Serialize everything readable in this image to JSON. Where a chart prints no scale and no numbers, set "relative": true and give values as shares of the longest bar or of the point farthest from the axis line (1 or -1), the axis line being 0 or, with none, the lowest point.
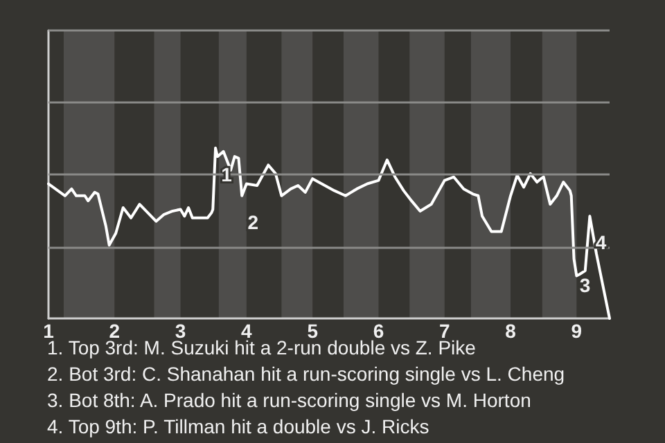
{
  "chart_data": {
    "type": "line",
    "relative": true,
    "x": [
      1,
      1.25,
      1.35,
      1.42,
      1.55,
      1.6,
      1.7,
      1.75,
      1.87,
      1.92,
      2.02,
      2.13,
      2.25,
      2.38,
      2.63,
      2.75,
      2.88,
      3,
      3.06,
      3.12,
      3.18,
      3.41,
      3.47,
      3.49,
      3.53,
      3.56,
      3.65,
      3.76,
      3.82,
      3.88,
      3.93,
      4,
      4.16,
      4.33,
      4.44,
      4.53,
      4.67,
      4.78,
      4.89,
      5,
      5.33,
      5.5,
      5.67,
      5.83,
      6,
      6.13,
      6.25,
      6.38,
      6.5,
      6.63,
      6.8,
      7,
      7.14,
      7.29,
      7.43,
      7.51,
      7.57,
      7.71,
      7.86,
      8,
      8.1,
      8.2,
      8.3,
      8.4,
      8.46,
      8.5,
      8.6,
      8.7,
      8.8,
      8.9,
      8.92,
      8.96,
      9,
      9.05,
      9.13,
      9.2,
      9.3,
      9.5
    ],
    "series": [
      {
        "color": "#ffffff",
        "values": [
          0.79,
          0.72,
          0.76,
          0.72,
          0.72,
          0.69,
          0.74,
          0.73,
          0.54,
          0.43,
          0.5,
          0.65,
          0.59,
          0.67,
          0.57,
          0.61,
          0.63,
          0.64,
          0.6,
          0.65,
          0.59,
          0.59,
          0.62,
          0.64,
          1,
          0.95,
          0.98,
          0.87,
          0.95,
          0.94,
          0.72,
          0.79,
          0.78,
          0.9,
          0.85,
          0.72,
          0.76,
          0.78,
          0.74,
          0.82,
          0.75,
          0.72,
          0.76,
          0.79,
          0.81,
          0.93,
          0.83,
          0.75,
          0.69,
          0.63,
          0.67,
          0.81,
          0.83,
          0.76,
          0.73,
          0.72,
          0.6,
          0.51,
          0.51,
          0.72,
          0.84,
          0.77,
          0.85,
          0.8,
          0.82,
          0.83,
          0.67,
          0.72,
          0.8,
          0.75,
          0.72,
          0.35,
          0.25,
          0.26,
          0.28,
          0.6,
          0.38,
          0
        ]
      }
    ],
    "xlim": [
      1,
      9.5
    ],
    "xticks": [
      1,
      2,
      3,
      4,
      5,
      6,
      7,
      8,
      9
    ],
    "tick_labels": "x",
    "marker": "none",
    "bands": [
      {
        "axis": "x",
        "from": 1.23,
        "to": 2,
        "color": "#4e4d4b"
      },
      {
        "axis": "x",
        "from": 2.6,
        "to": 3,
        "color": "#4e4d4b"
      },
      {
        "axis": "x",
        "from": 3.58,
        "to": 4,
        "color": "#4e4d4b"
      },
      {
        "axis": "x",
        "from": 4.53,
        "to": 5,
        "color": "#4e4d4b"
      },
      {
        "axis": "x",
        "from": 5.47,
        "to": 6,
        "color": "#4e4d4b"
      },
      {
        "axis": "x",
        "from": 6.47,
        "to": 7,
        "color": "#4e4d4b"
      },
      {
        "axis": "x",
        "from": 7.4,
        "to": 8,
        "color": "#4e4d4b"
      },
      {
        "axis": "x",
        "from": 8.48,
        "to": 9,
        "color": "#4e4d4b"
      }
    ],
    "ref_lines": [
      {
        "axis": "y",
        "value": 0.42,
        "color": "#8a8a88"
      },
      {
        "axis": "y",
        "value": 0.85,
        "color": "#8a8a88"
      },
      {
        "axis": "y",
        "value": 1.27,
        "color": "#8a8a88"
      },
      {
        "axis": "y",
        "value": 1.69,
        "color": "#8a8a88"
      }
    ],
    "annotations": [
      {
        "text": "1",
        "x": 3.53,
        "y": 1
      },
      {
        "text": "2",
        "x": 3.93,
        "y": 0.72
      },
      {
        "text": "3",
        "x": 8.96,
        "y": 0.35
      },
      {
        "text": "4",
        "x": 9.2,
        "y": 0.6
      },
      "1. Top 3rd: M. Suzuki hit a 2-run double vs Z. Pike",
      "2. Bot 3rd: C. Shanahan hit a run-scoring single vs L. Cheng",
      "3. Bot 8th: A. Prado hit a run-scoring single vs M. Horton",
      "4. Top 9th: P. Tillman hit a double vs J. Ricks"
    ]
  }
}
